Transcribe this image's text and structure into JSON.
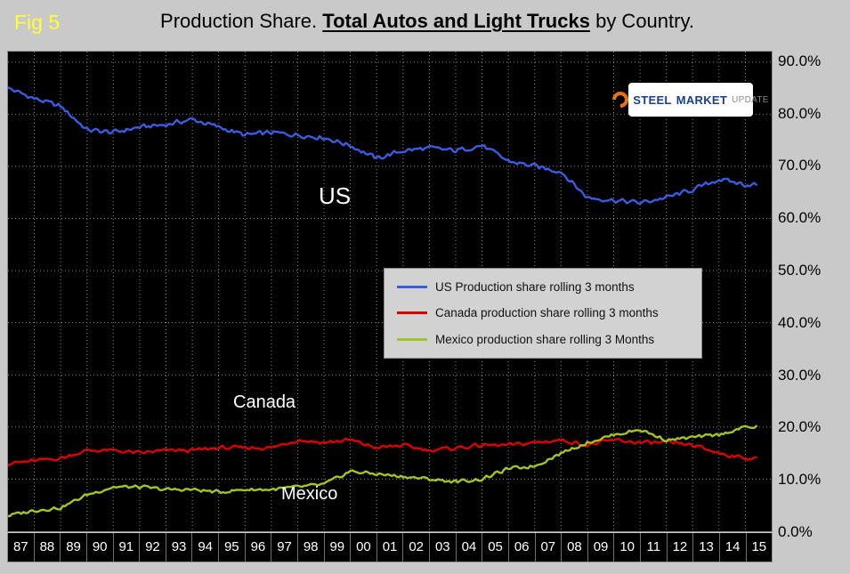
{
  "fig_label": "Fig 5",
  "title": {
    "prefix": "Production Share. ",
    "emphasis": "Total Autos and Light Trucks",
    "suffix": " by Country."
  },
  "logo": {
    "steel": "STEEL",
    "market": "MARKET",
    "update": "UPDATE"
  },
  "annotations": {
    "us": "US",
    "canada": "Canada",
    "mexico": "Mexico"
  },
  "legend": [
    {
      "label": "US Production share rolling 3 months",
      "color": "#3a5ce0"
    },
    {
      "label": "Canada production share rolling 3 months",
      "color": "#dd0000"
    },
    {
      "label": "Mexico production share rolling 3 Months",
      "color": "#a4c422"
    }
  ],
  "colors": {
    "page_background": "#c9c9c9",
    "plot_background": "#000000",
    "gridline": "#8a8a8a",
    "fig_label": "#ffff33",
    "us_line": "#3a5ce0",
    "canada_line": "#dd0000",
    "mexico_line": "#a4c422"
  },
  "chart_data": {
    "type": "line",
    "title": "Production Share. Total Autos and Light Trucks by Country.",
    "xlabel": "",
    "ylabel": "",
    "x_years": [
      "87",
      "88",
      "89",
      "90",
      "91",
      "92",
      "93",
      "94",
      "95",
      "96",
      "97",
      "98",
      "99",
      "00",
      "01",
      "02",
      "03",
      "04",
      "05",
      "06",
      "07",
      "08",
      "09",
      "10",
      "11",
      "12",
      "13",
      "14",
      "15"
    ],
    "y_ticks": [
      "90.0%",
      "80.0%",
      "70.0%",
      "60.0%",
      "50.0%",
      "40.0%",
      "30.0%",
      "20.0%",
      "10.0%",
      "0.0%"
    ],
    "ylim": [
      0,
      92
    ],
    "grid": true,
    "legend_position": "center-right",
    "series": [
      {
        "name": "US Production share rolling 3 months",
        "color": "#3a5ce0",
        "values": [
          85,
          83,
          81.5,
          77,
          76.5,
          77.5,
          78,
          79,
          77.5,
          76,
          76.5,
          76,
          75.5,
          74,
          71.5,
          73,
          73.5,
          73,
          74,
          71,
          70,
          69,
          64,
          63.5,
          63,
          64,
          65.5,
          67.5,
          66.5
        ]
      },
      {
        "name": "Canada production share rolling 3 months",
        "color": "#dd0000",
        "values": [
          13,
          13.5,
          14,
          15.5,
          15.5,
          15,
          15.5,
          15.5,
          16,
          16,
          16,
          17.5,
          17,
          17.5,
          16,
          16.5,
          15.5,
          16,
          16.5,
          16.5,
          17,
          17.5,
          16.5,
          17.5,
          17,
          17,
          16.5,
          15,
          14
        ]
      },
      {
        "name": "Mexico production share rolling 3 Months",
        "color": "#a4c422",
        "values": [
          3,
          4,
          4.5,
          7,
          8.5,
          8.5,
          8,
          8,
          7.5,
          8,
          8,
          8.5,
          9,
          11.5,
          11,
          10.5,
          10,
          9.5,
          10,
          12,
          12.5,
          15,
          17,
          18.5,
          19.5,
          17.5,
          18,
          18.5,
          20
        ]
      }
    ]
  }
}
